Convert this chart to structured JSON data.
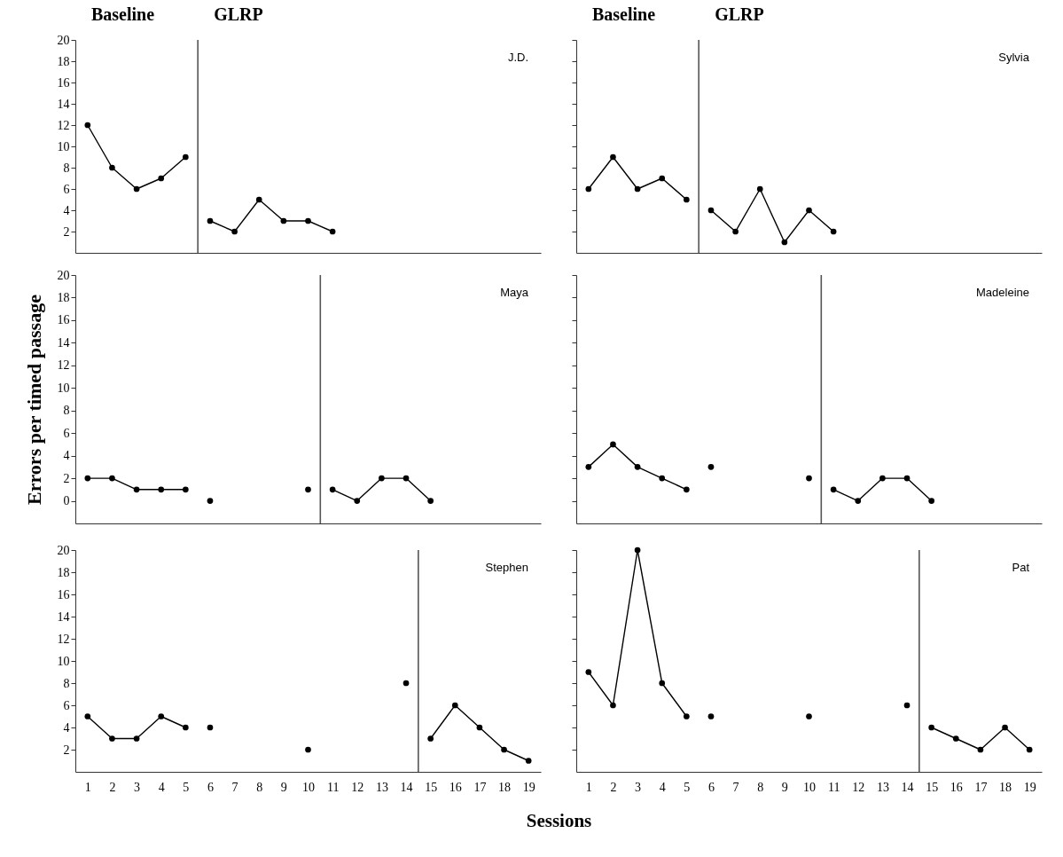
{
  "chart_data": [
    {
      "type": "line",
      "title": "J.D.",
      "annotations": [
        "Baseline",
        "GLRP"
      ],
      "xlim": [
        0.5,
        19.5
      ],
      "ylim": [
        0,
        20
      ],
      "yticks": [
        2,
        4,
        6,
        8,
        10,
        12,
        14,
        16,
        18,
        20
      ],
      "tick_labels": "y",
      "grid": false,
      "marker": "circle",
      "line_style": "solid",
      "ref_lines": [
        {
          "axis": "x",
          "value": 5.5,
          "color": "#555555"
        }
      ],
      "series": [
        {
          "color": "#000000",
          "x": [
            1,
            2,
            3,
            4,
            5
          ],
          "values": [
            12,
            8,
            6,
            7,
            9
          ]
        },
        {
          "color": "#000000",
          "x": [
            6,
            7,
            8,
            9,
            10,
            11
          ],
          "values": [
            3,
            2,
            5,
            3,
            3,
            2
          ]
        }
      ]
    },
    {
      "type": "line",
      "title": "Sylvia",
      "annotations": [
        "Baseline",
        "GLRP"
      ],
      "xlim": [
        0.5,
        19.5
      ],
      "ylim": [
        0,
        20
      ],
      "yticks": [
        2,
        4,
        6,
        8,
        10,
        12,
        14,
        16,
        18,
        20
      ],
      "tick_labels": false,
      "grid": false,
      "marker": "circle",
      "line_style": "solid",
      "ref_lines": [
        {
          "axis": "x",
          "value": 5.5,
          "color": "#555555"
        }
      ],
      "series": [
        {
          "color": "#000000",
          "x": [
            1,
            2,
            3,
            4,
            5
          ],
          "values": [
            6,
            9,
            6,
            7,
            5
          ]
        },
        {
          "color": "#000000",
          "x": [
            6,
            7,
            8,
            9,
            10,
            11
          ],
          "values": [
            4,
            2,
            6,
            1,
            4,
            2
          ]
        }
      ]
    },
    {
      "type": "line",
      "title": "Maya",
      "ylabel": "Errors per timed passage",
      "xlim": [
        0.5,
        19.5
      ],
      "ylim": [
        -2,
        20
      ],
      "yticks": [
        0,
        2,
        4,
        6,
        8,
        10,
        12,
        14,
        16,
        18,
        20
      ],
      "tick_labels": "y",
      "grid": false,
      "marker": "circle",
      "line_style": "solid",
      "ref_lines": [
        {
          "axis": "x",
          "value": 10.5,
          "color": "#555555"
        }
      ],
      "series": [
        {
          "color": "#000000",
          "x": [
            1,
            2,
            3,
            4,
            5
          ],
          "values": [
            2,
            2,
            1,
            1,
            1
          ]
        },
        {
          "type": "scatter",
          "color": "#000000",
          "x": [
            6,
            10
          ],
          "values": [
            0,
            1
          ]
        },
        {
          "color": "#000000",
          "x": [
            11,
            12,
            13,
            14,
            15
          ],
          "values": [
            1,
            0,
            2,
            2,
            0
          ]
        }
      ]
    },
    {
      "type": "line",
      "title": "Madeleine",
      "xlim": [
        0.5,
        19.5
      ],
      "ylim": [
        -2,
        20
      ],
      "yticks": [
        0,
        2,
        4,
        6,
        8,
        10,
        12,
        14,
        16,
        18,
        20
      ],
      "tick_labels": false,
      "grid": false,
      "marker": "circle",
      "line_style": "solid",
      "ref_lines": [
        {
          "axis": "x",
          "value": 10.5,
          "color": "#555555"
        }
      ],
      "series": [
        {
          "color": "#000000",
          "x": [
            1,
            2,
            3,
            4,
            5
          ],
          "values": [
            3,
            5,
            3,
            2,
            1
          ]
        },
        {
          "type": "scatter",
          "color": "#000000",
          "x": [
            6,
            10
          ],
          "values": [
            3,
            2
          ]
        },
        {
          "color": "#000000",
          "x": [
            11,
            12,
            13,
            14,
            15
          ],
          "values": [
            1,
            0,
            2,
            2,
            0
          ]
        }
      ]
    },
    {
      "type": "line",
      "title": "Stephen",
      "xlabel": "Sessions",
      "xlim": [
        0.5,
        19.5
      ],
      "ylim": [
        0,
        20
      ],
      "xticks": [
        1,
        2,
        3,
        4,
        5,
        6,
        7,
        8,
        9,
        10,
        11,
        12,
        13,
        14,
        15,
        16,
        17,
        18,
        19
      ],
      "yticks": [
        2,
        4,
        6,
        8,
        10,
        12,
        14,
        16,
        18,
        20
      ],
      "grid": false,
      "marker": "circle",
      "line_style": "solid",
      "ref_lines": [
        {
          "axis": "x",
          "value": 14.5,
          "color": "#555555"
        }
      ],
      "series": [
        {
          "color": "#000000",
          "x": [
            1,
            2,
            3,
            4,
            5
          ],
          "values": [
            5,
            3,
            3,
            5,
            4
          ]
        },
        {
          "type": "scatter",
          "color": "#000000",
          "x": [
            6,
            10,
            14
          ],
          "values": [
            4,
            2,
            8
          ]
        },
        {
          "color": "#000000",
          "x": [
            15,
            16,
            17,
            18,
            19
          ],
          "values": [
            3,
            6,
            4,
            2,
            1
          ]
        }
      ]
    },
    {
      "type": "line",
      "title": "Pat",
      "xlim": [
        0.5,
        19.5
      ],
      "ylim": [
        0,
        20
      ],
      "xticks": [
        1,
        2,
        3,
        4,
        5,
        6,
        7,
        8,
        9,
        10,
        11,
        12,
        13,
        14,
        15,
        16,
        17,
        18,
        19
      ],
      "yticks": [
        2,
        4,
        6,
        8,
        10,
        12,
        14,
        16,
        18,
        20
      ],
      "tick_labels": "x",
      "grid": false,
      "marker": "circle",
      "line_style": "solid",
      "ref_lines": [
        {
          "axis": "x",
          "value": 14.5,
          "color": "#555555"
        }
      ],
      "series": [
        {
          "color": "#000000",
          "x": [
            1,
            2,
            3,
            4,
            5
          ],
          "values": [
            9,
            6,
            20,
            8,
            5
          ]
        },
        {
          "type": "scatter",
          "color": "#000000",
          "x": [
            6,
            10,
            14
          ],
          "values": [
            5,
            5,
            6
          ]
        },
        {
          "color": "#000000",
          "x": [
            15,
            16,
            17,
            18,
            19
          ],
          "values": [
            4,
            3,
            2,
            4,
            2
          ]
        }
      ]
    }
  ]
}
